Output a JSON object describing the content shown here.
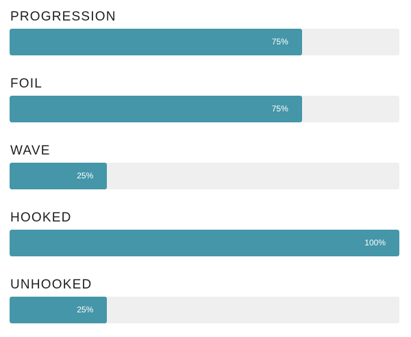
{
  "skills": [
    {
      "label": "PROGRESSION",
      "value_text": "75%",
      "value": 75
    },
    {
      "label": "FOIL",
      "value_text": "75%",
      "value": 75
    },
    {
      "label": "WAVE",
      "value_text": "25%",
      "value": 25
    },
    {
      "label": "HOOKED",
      "value_text": "100%",
      "value": 100
    },
    {
      "label": "UNHOOKED",
      "value_text": "25%",
      "value": 25
    }
  ],
  "colors": {
    "bar_fill": "#4596a8",
    "bar_track": "#efefef",
    "label_text": "#1e1e1e",
    "value_text": "#ffffff"
  }
}
